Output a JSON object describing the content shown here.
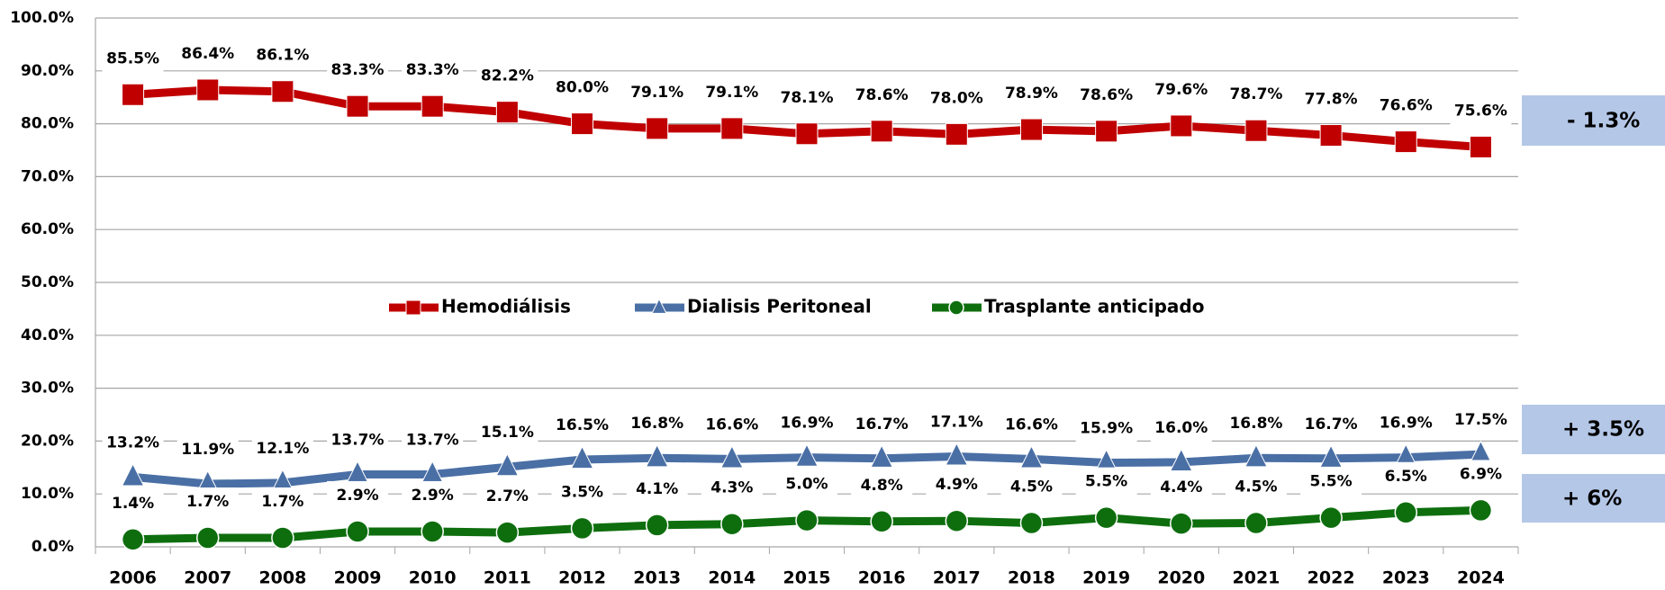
{
  "chart_data": {
    "type": "line",
    "categories": [
      "2006",
      "2007",
      "2008",
      "2009",
      "2010",
      "2011",
      "2012",
      "2013",
      "2014",
      "2015",
      "2016",
      "2017",
      "2018",
      "2019",
      "2020",
      "2021",
      "2022",
      "2023",
      "2024"
    ],
    "series": [
      {
        "name": "Hemodiálisis",
        "color": "#c00000",
        "marker": "square",
        "values": [
          85.5,
          86.4,
          86.1,
          83.3,
          83.3,
          82.2,
          80.0,
          79.1,
          79.1,
          78.1,
          78.6,
          78.0,
          78.9,
          78.6,
          79.6,
          78.7,
          77.8,
          76.6,
          75.6
        ],
        "value_labels": [
          "85.5%",
          "86.4%",
          "86.1%",
          "83.3%",
          "83.3%",
          "82.2%",
          "80.0%",
          "79.1%",
          "79.1%",
          "78.1%",
          "78.6%",
          "78.0%",
          "78.9%",
          "78.6%",
          "79.6%",
          "78.7%",
          "77.8%",
          "76.6%",
          "75.6%"
        ]
      },
      {
        "name": "Dialisis Peritoneal",
        "color": "#4a6fa5",
        "marker": "triangle",
        "values": [
          13.2,
          11.9,
          12.1,
          13.7,
          13.7,
          15.1,
          16.5,
          16.8,
          16.6,
          16.9,
          16.7,
          17.1,
          16.6,
          15.9,
          16.0,
          16.8,
          16.7,
          16.9,
          17.5
        ],
        "value_labels": [
          "13.2%",
          "11.9%",
          "12.1%",
          "13.7%",
          "13.7%",
          "15.1%",
          "16.5%",
          "16.8%",
          "16.6%",
          "16.9%",
          "16.7%",
          "17.1%",
          "16.6%",
          "15.9%",
          "16.0%",
          "16.8%",
          "16.7%",
          "16.9%",
          "17.5%"
        ]
      },
      {
        "name": "Trasplante anticipado",
        "color": "#0e6e0e",
        "marker": "circle",
        "values": [
          1.4,
          1.7,
          1.7,
          2.9,
          2.9,
          2.7,
          3.5,
          4.1,
          4.3,
          5.0,
          4.8,
          4.9,
          4.5,
          5.5,
          4.4,
          4.5,
          5.5,
          6.5,
          6.9
        ],
        "value_labels": [
          "1.4%",
          "1.7%",
          "1.7%",
          "2.9%",
          "2.9%",
          "2.7%",
          "3.5%",
          "4.1%",
          "4.3%",
          "5.0%",
          "4.8%",
          "4.9%",
          "4.5%",
          "5.5%",
          "4.4%",
          "4.5%",
          "5.5%",
          "6.5%",
          "6.9%"
        ]
      }
    ],
    "ylim": [
      0,
      100
    ],
    "yticks": [
      {
        "value": 0,
        "label": "0.0%"
      },
      {
        "value": 10,
        "label": "10.0%"
      },
      {
        "value": 20,
        "label": "20.0%"
      },
      {
        "value": 30,
        "label": "30.0%"
      },
      {
        "value": 40,
        "label": "40.0%"
      },
      {
        "value": 50,
        "label": "50.0%"
      },
      {
        "value": 60,
        "label": "60.0%"
      },
      {
        "value": 70,
        "label": "70.0%"
      },
      {
        "value": 80,
        "label": "80.0%"
      },
      {
        "value": 90,
        "label": "90.0%"
      },
      {
        "value": 100,
        "label": "100.0%"
      }
    ],
    "grid": true,
    "legend": "center",
    "annotations": [
      "- 1.3%",
      "+ 3.5%",
      "+ 6%"
    ]
  }
}
